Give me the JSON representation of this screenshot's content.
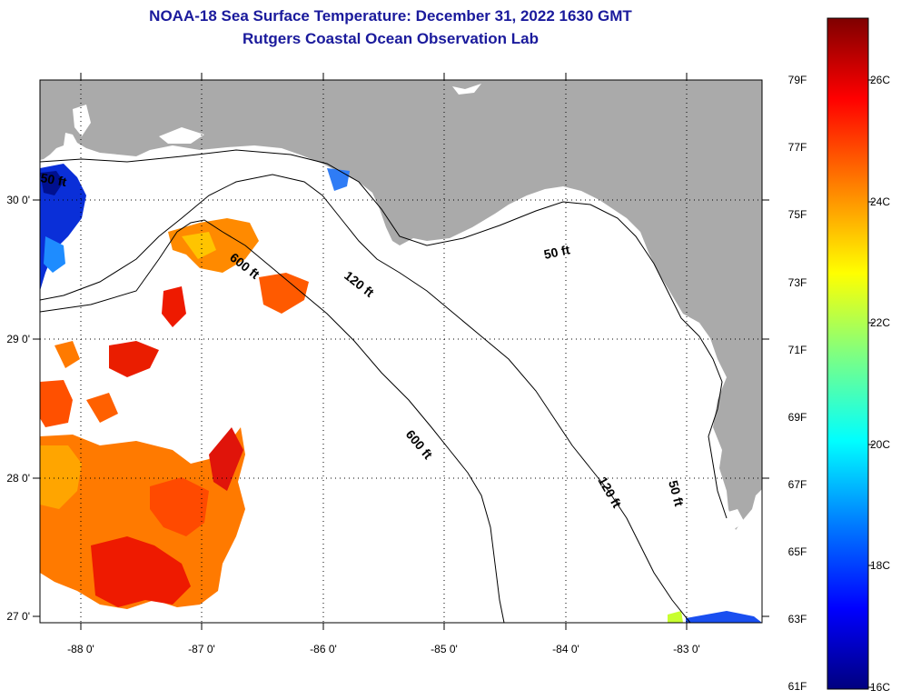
{
  "header": {
    "title": "NOAA-18 Sea Surface Temperature:  December 31, 2022 1630 GMT",
    "subtitle": "Rutgers Coastal Ocean Observation Lab"
  },
  "map": {
    "lon_ticks": [
      "-88 0'",
      "-87 0'",
      "-86 0'",
      "-85 0'",
      "-84 0'",
      "-83 0'"
    ],
    "lat_ticks": [
      "30 0'",
      "29 0'",
      "28 0'",
      "27 0'"
    ],
    "contour_labels": {
      "isobath_600_north": "600 ft",
      "isobath_600_south": "600 ft",
      "isobath_120_north": "120 ft",
      "isobath_120_south": "120 ft",
      "isobath_50_north": "50 ft",
      "isobath_50_south": "50 ft",
      "isobath_partial_nw": "50 ft"
    },
    "colors": {
      "land": "#aaaaaa",
      "ocean_no_data": "#ffffff",
      "coastline": "#000000"
    }
  },
  "colorbar": {
    "fahrenheit_labels": [
      "79F",
      "77F",
      "75F",
      "73F",
      "71F",
      "69F",
      "67F",
      "65F",
      "63F",
      "61F"
    ],
    "celsius_labels": [
      "26C",
      "24C",
      "22C",
      "20C",
      "18C",
      "16C"
    ],
    "min_c": 16,
    "max_c": 27,
    "colors": [
      "#00007f",
      "#0000ff",
      "#0080ff",
      "#00ffff",
      "#80ff80",
      "#ffff00",
      "#ff8000",
      "#ff0000",
      "#7f0000"
    ]
  }
}
